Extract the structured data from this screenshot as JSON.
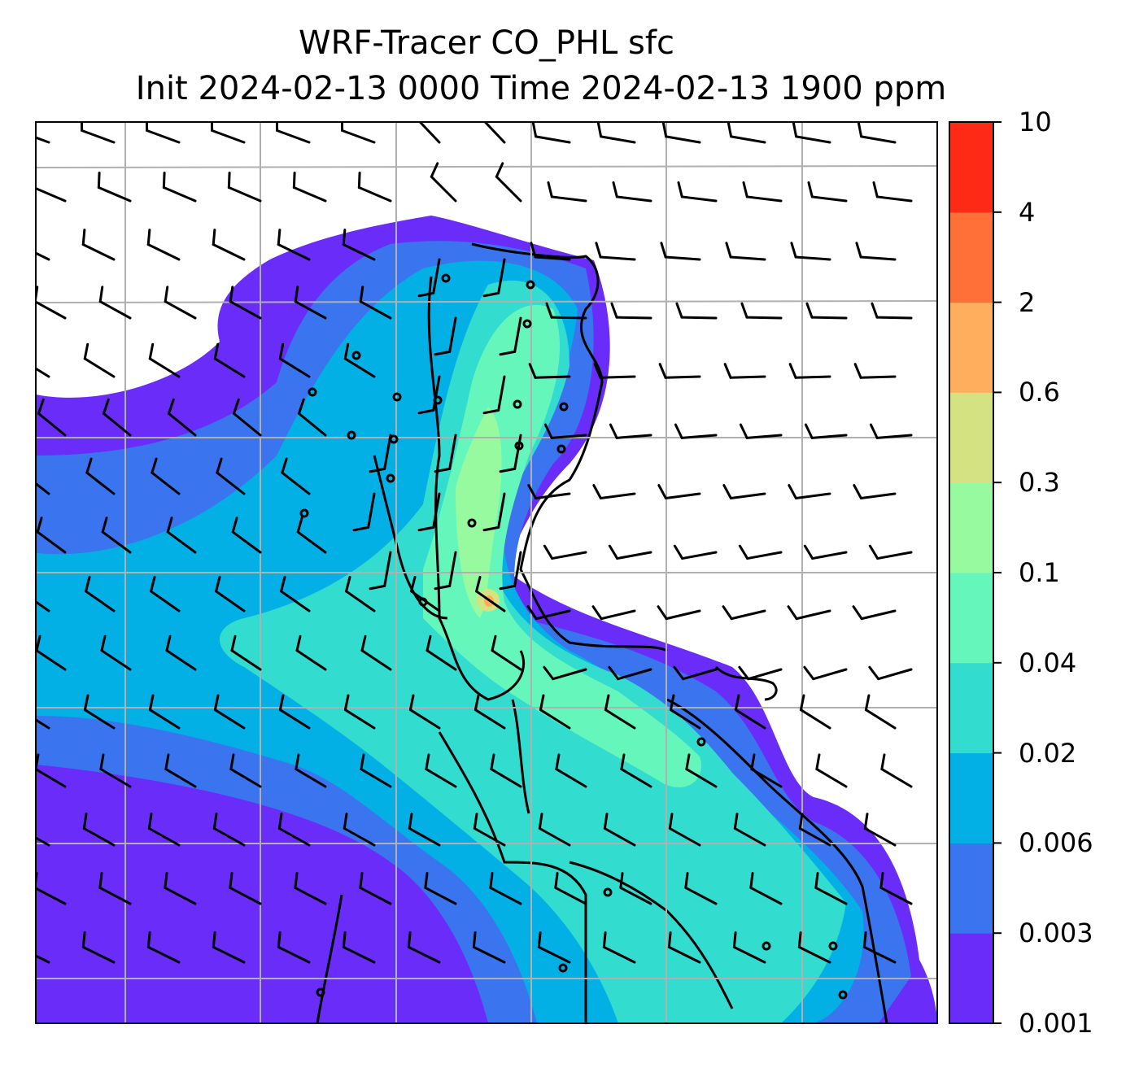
{
  "title": {
    "line1": "WRF-Tracer CO_PHL sfc",
    "line2": "Init 2024-02-13 0000 Time 2024-02-13 1900 ppm"
  },
  "colorbar": {
    "ticks": [
      "0.001",
      "0.003",
      "0.006",
      "0.02",
      "0.04",
      "0.1",
      "0.3",
      "0.6",
      "2",
      "4",
      "10"
    ],
    "colors": [
      "#6a2cf8",
      "#3a74ee",
      "#03b0e6",
      "#32dccf",
      "#64f6ba",
      "#98fa9e",
      "#d4e282",
      "#ffae5e",
      "#ff7038",
      "#ff2a16"
    ]
  },
  "map": {
    "variable": "CO_PHL",
    "level": "sfc",
    "units": "ppm",
    "features": [
      "coastline",
      "lat-lon gridlines",
      "wind barbs",
      "tracer concentration contours"
    ]
  }
}
